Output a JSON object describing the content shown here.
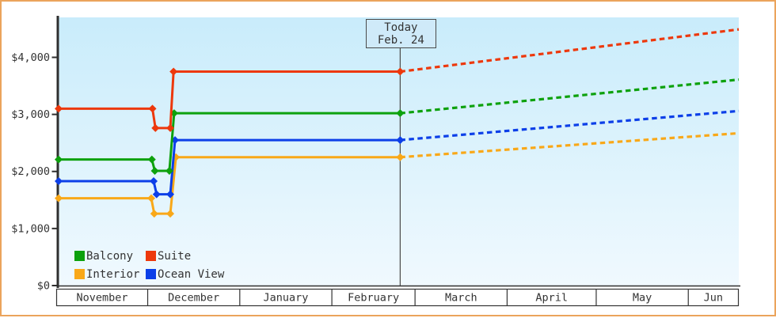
{
  "frame": {
    "border_color": "#eba45c",
    "background": "#ffffff"
  },
  "legend": {
    "items": [
      {
        "label": "Balcony",
        "color": "#0da10d"
      },
      {
        "label": "Suite",
        "color": "#ed380c"
      },
      {
        "label": "Interior",
        "color": "#f9a818"
      },
      {
        "label": "Ocean View",
        "color": "#0c3fe8"
      }
    ]
  },
  "chart_data": {
    "type": "line",
    "title": "",
    "xlabel": "",
    "ylabel": "",
    "grid": false,
    "legend_position": "bottom-left inside plot",
    "plot_bg_top": "#c9ecfb",
    "plot_bg_bottom": "#f0f9fe",
    "axis_color": "#2f2f2f",
    "text_color": "#333333",
    "ylim": [
      0,
      4700
    ],
    "y_ticks": [
      {
        "value": 0,
        "label": "$0"
      },
      {
        "value": 1000,
        "label": "$1,000"
      },
      {
        "value": 2000,
        "label": "$2,000"
      },
      {
        "value": 3000,
        "label": "$3,000"
      },
      {
        "value": 4000,
        "label": "$4,000"
      }
    ],
    "total_days": 229,
    "months": [
      {
        "label": "November",
        "start_day": 0
      },
      {
        "label": "December",
        "start_day": 30
      },
      {
        "label": "January",
        "start_day": 61
      },
      {
        "label": "February",
        "start_day": 92
      },
      {
        "label": "March",
        "start_day": 120
      },
      {
        "label": "April",
        "start_day": 151
      },
      {
        "label": "May",
        "start_day": 181
      },
      {
        "label": "Jun",
        "start_day": 212
      }
    ],
    "today": {
      "day": 115,
      "label_line1": "Today",
      "label_line2": "Feb. 24"
    },
    "series": [
      {
        "name": "Interior",
        "color": "#f9a818",
        "solid": [
          [
            0,
            1530
          ],
          [
            31.2,
            1530
          ],
          [
            32.2,
            1260
          ],
          [
            37.6,
            1260
          ],
          [
            39.5,
            2250
          ],
          [
            115,
            2250
          ]
        ],
        "projection": [
          [
            115,
            2250
          ],
          [
            229,
            2670
          ]
        ]
      },
      {
        "name": "Ocean View",
        "color": "#0c3fe8",
        "solid": [
          [
            0,
            1830
          ],
          [
            32.0,
            1830
          ],
          [
            33.0,
            1600
          ],
          [
            37.6,
            1600
          ],
          [
            39.2,
            2550
          ],
          [
            115,
            2550
          ]
        ],
        "projection": [
          [
            115,
            2550
          ],
          [
            229,
            3060
          ]
        ]
      },
      {
        "name": "Balcony",
        "color": "#0da10d",
        "solid": [
          [
            0,
            2210
          ],
          [
            31.4,
            2210
          ],
          [
            32.4,
            2010
          ],
          [
            37.3,
            2010
          ],
          [
            38.9,
            3020
          ],
          [
            115,
            3020
          ]
        ],
        "projection": [
          [
            115,
            3020
          ],
          [
            229,
            3610
          ]
        ]
      },
      {
        "name": "Suite",
        "color": "#ed380c",
        "solid": [
          [
            0,
            3100
          ],
          [
            31.6,
            3100
          ],
          [
            32.6,
            2760
          ],
          [
            37.6,
            2760
          ],
          [
            38.7,
            3750
          ],
          [
            115,
            3750
          ]
        ],
        "projection": [
          [
            115,
            3750
          ],
          [
            229,
            4490
          ]
        ]
      }
    ]
  }
}
